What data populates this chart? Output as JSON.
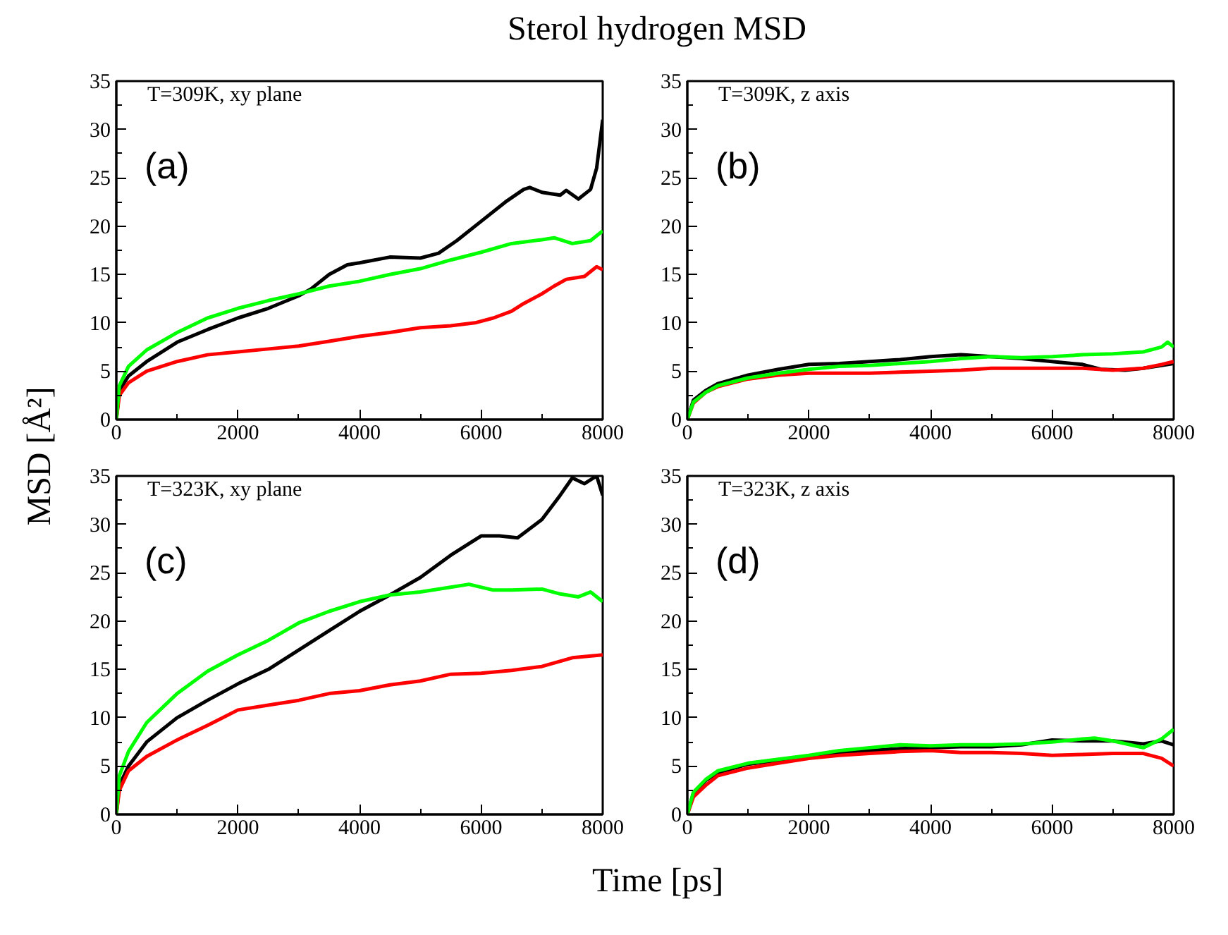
{
  "chart_data": [
    {
      "type": "line",
      "title": "Sterol hydrogen MSD",
      "ylabel": "MSD [Å²]",
      "xlabel": "Time [ps]",
      "annotations": [
        "T=309K, xy plane",
        "(a)"
      ],
      "xlim": [
        0,
        8000
      ],
      "ylim": [
        0,
        35
      ],
      "xticks": [
        0,
        2000,
        4000,
        6000,
        8000
      ],
      "yticks": [
        0,
        5,
        10,
        15,
        20,
        25,
        30,
        35
      ],
      "grid": false,
      "series": [
        {
          "color": "#000000",
          "x": [
            0,
            50,
            200,
            500,
            1000,
            1500,
            2000,
            2500,
            3000,
            3200,
            3500,
            3800,
            4000,
            4500,
            5000,
            5300,
            5600,
            6000,
            6400,
            6700,
            6800,
            7000,
            7300,
            7400,
            7600,
            7800,
            7900,
            8000
          ],
          "values": [
            0,
            3,
            4.5,
            6,
            8,
            9.3,
            10.5,
            11.5,
            12.8,
            13.5,
            15,
            16,
            16.2,
            16.8,
            16.7,
            17.2,
            18.5,
            20.5,
            22.5,
            23.8,
            24,
            23.5,
            23.2,
            23.7,
            22.8,
            23.8,
            26,
            31
          ]
        },
        {
          "color": "#ff0000",
          "x": [
            0,
            50,
            200,
            500,
            1000,
            1500,
            2000,
            2500,
            3000,
            3500,
            4000,
            4500,
            5000,
            5500,
            5900,
            6200,
            6500,
            6700,
            7000,
            7200,
            7400,
            7700,
            7900,
            8000
          ],
          "values": [
            0,
            2.5,
            3.8,
            5,
            6,
            6.7,
            7,
            7.3,
            7.6,
            8.1,
            8.6,
            9,
            9.5,
            9.7,
            10,
            10.5,
            11.2,
            12,
            13,
            13.8,
            14.5,
            14.8,
            15.8,
            15.5
          ]
        },
        {
          "color": "#00ff00",
          "x": [
            0,
            50,
            200,
            500,
            1000,
            1500,
            2000,
            2500,
            3000,
            3500,
            4000,
            4500,
            5000,
            5500,
            6000,
            6500,
            7000,
            7200,
            7500,
            7800,
            8000
          ],
          "values": [
            0,
            3.5,
            5.5,
            7.2,
            9,
            10.5,
            11.5,
            12.3,
            13,
            13.8,
            14.3,
            15,
            15.6,
            16.5,
            17.3,
            18.2,
            18.6,
            18.8,
            18.2,
            18.5,
            19.5
          ]
        }
      ]
    },
    {
      "type": "line",
      "annotations": [
        "T=309K, z axis",
        "(b)"
      ],
      "xlim": [
        0,
        8000
      ],
      "ylim": [
        0,
        35
      ],
      "xticks": [
        0,
        2000,
        4000,
        6000,
        8000
      ],
      "yticks": [
        0,
        5,
        10,
        15,
        20,
        25,
        30,
        35
      ],
      "grid": false,
      "series": [
        {
          "color": "#000000",
          "x": [
            0,
            100,
            300,
            500,
            1000,
            1500,
            2000,
            2500,
            3000,
            3500,
            4000,
            4500,
            5000,
            5500,
            6000,
            6500,
            6800,
            7200,
            7500,
            7800,
            8000
          ],
          "values": [
            0,
            2,
            3,
            3.7,
            4.6,
            5.2,
            5.7,
            5.8,
            6,
            6.2,
            6.5,
            6.7,
            6.5,
            6.3,
            6,
            5.7,
            5.2,
            5.1,
            5.3,
            5.6,
            5.8
          ]
        },
        {
          "color": "#ff0000",
          "x": [
            0,
            100,
            300,
            500,
            1000,
            1500,
            2000,
            2500,
            3000,
            3500,
            4000,
            4500,
            5000,
            5500,
            6000,
            6500,
            7000,
            7500,
            7800,
            8000
          ],
          "values": [
            0,
            1.7,
            2.8,
            3.4,
            4.2,
            4.6,
            4.8,
            4.8,
            4.8,
            4.9,
            5,
            5.1,
            5.3,
            5.3,
            5.3,
            5.3,
            5.1,
            5.3,
            5.7,
            6
          ]
        },
        {
          "color": "#00ff00",
          "x": [
            0,
            100,
            300,
            500,
            1000,
            1500,
            2000,
            2500,
            3000,
            3500,
            4000,
            4500,
            5000,
            5500,
            6000,
            6500,
            7000,
            7500,
            7800,
            7900,
            8000
          ],
          "values": [
            0,
            1.8,
            2.8,
            3.5,
            4.3,
            4.8,
            5.2,
            5.5,
            5.6,
            5.8,
            6,
            6.3,
            6.5,
            6.4,
            6.5,
            6.7,
            6.8,
            7,
            7.5,
            8,
            7.5
          ]
        }
      ]
    },
    {
      "type": "line",
      "annotations": [
        "T=323K, xy plane",
        "(c)"
      ],
      "xlim": [
        0,
        8000
      ],
      "ylim": [
        0,
        35
      ],
      "xticks": [
        0,
        2000,
        4000,
        6000,
        8000
      ],
      "yticks": [
        0,
        5,
        10,
        15,
        20,
        25,
        30,
        35
      ],
      "grid": false,
      "series": [
        {
          "color": "#000000",
          "x": [
            0,
            50,
            200,
            500,
            1000,
            1500,
            2000,
            2500,
            3000,
            3500,
            4000,
            4500,
            5000,
            5500,
            6000,
            6300,
            6600,
            7000,
            7300,
            7500,
            7700,
            7900,
            8000
          ],
          "values": [
            0,
            3,
            5,
            7.5,
            10,
            11.8,
            13.5,
            15,
            17,
            19,
            21,
            22.7,
            24.5,
            26.8,
            28.8,
            28.8,
            28.6,
            30.5,
            33,
            34.8,
            34.2,
            35,
            33
          ]
        },
        {
          "color": "#ff0000",
          "x": [
            0,
            50,
            200,
            500,
            1000,
            1500,
            2000,
            2500,
            3000,
            3500,
            4000,
            4500,
            5000,
            5500,
            6000,
            6500,
            7000,
            7500,
            8000
          ],
          "values": [
            0,
            2.5,
            4.5,
            6,
            7.7,
            9.2,
            10.8,
            11.3,
            11.8,
            12.5,
            12.8,
            13.4,
            13.8,
            14.5,
            14.6,
            14.9,
            15.3,
            16.2,
            16.5
          ]
        },
        {
          "color": "#00ff00",
          "x": [
            0,
            50,
            200,
            500,
            1000,
            1500,
            2000,
            2500,
            3000,
            3500,
            4000,
            4500,
            5000,
            5500,
            5800,
            6200,
            6500,
            7000,
            7300,
            7600,
            7800,
            8000
          ],
          "values": [
            0,
            4,
            6.5,
            9.5,
            12.5,
            14.8,
            16.5,
            18,
            19.8,
            21,
            22,
            22.7,
            23,
            23.5,
            23.8,
            23.2,
            23.2,
            23.3,
            22.8,
            22.5,
            23,
            22
          ]
        }
      ]
    },
    {
      "type": "line",
      "annotations": [
        "T=323K, z axis",
        "(d)"
      ],
      "xlim": [
        0,
        8000
      ],
      "ylim": [
        0,
        35
      ],
      "xticks": [
        0,
        2000,
        4000,
        6000,
        8000
      ],
      "yticks": [
        0,
        5,
        10,
        15,
        20,
        25,
        30,
        35
      ],
      "grid": false,
      "series": [
        {
          "color": "#000000",
          "x": [
            0,
            100,
            300,
            500,
            1000,
            1500,
            2000,
            2500,
            3000,
            3500,
            4000,
            4500,
            5000,
            5500,
            6000,
            6500,
            7000,
            7500,
            7800,
            8000
          ],
          "values": [
            0,
            2.2,
            3.5,
            4.3,
            5.2,
            5.6,
            6,
            6.3,
            6.6,
            6.8,
            6.9,
            7,
            7,
            7.2,
            7.7,
            7.6,
            7.6,
            7.3,
            7.6,
            7.2
          ]
        },
        {
          "color": "#ff0000",
          "x": [
            0,
            100,
            300,
            500,
            1000,
            1500,
            2000,
            2500,
            3000,
            3500,
            4000,
            4500,
            5000,
            5500,
            6000,
            6500,
            7000,
            7500,
            7800,
            8000
          ],
          "values": [
            0,
            1.8,
            3,
            4,
            4.8,
            5.3,
            5.8,
            6.1,
            6.3,
            6.5,
            6.6,
            6.4,
            6.4,
            6.3,
            6.1,
            6.2,
            6.3,
            6.3,
            5.8,
            5
          ]
        },
        {
          "color": "#00ff00",
          "x": [
            0,
            100,
            300,
            500,
            1000,
            1500,
            2000,
            2500,
            3000,
            3500,
            4000,
            4500,
            5000,
            5500,
            6000,
            6500,
            6700,
            7000,
            7500,
            7800,
            8000
          ],
          "values": [
            0,
            2.3,
            3.6,
            4.5,
            5.3,
            5.7,
            6.1,
            6.6,
            6.9,
            7.2,
            7.1,
            7.2,
            7.2,
            7.3,
            7.5,
            7.8,
            7.9,
            7.6,
            6.9,
            7.8,
            8.8
          ]
        }
      ]
    }
  ]
}
